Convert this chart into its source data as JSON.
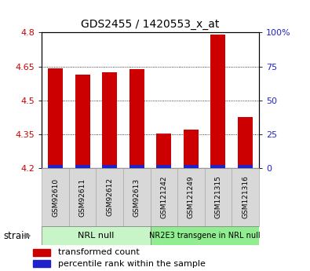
{
  "title": "GDS2455 / 1420553_x_at",
  "samples": [
    "GSM92610",
    "GSM92611",
    "GSM92612",
    "GSM92613",
    "GSM121242",
    "GSM121249",
    "GSM121315",
    "GSM121316"
  ],
  "transformed_counts": [
    4.64,
    4.615,
    4.625,
    4.638,
    4.353,
    4.37,
    4.79,
    4.425
  ],
  "ymin": 4.2,
  "ymax": 4.8,
  "yticks": [
    4.2,
    4.35,
    4.5,
    4.65,
    4.8
  ],
  "right_yticks": [
    0,
    25,
    50,
    75,
    100
  ],
  "right_yticklabels": [
    "0",
    "25",
    "50",
    "75",
    "100%"
  ],
  "groups": [
    {
      "label": "NRL null",
      "start": 0,
      "end": 3,
      "color": "#c8f5c8"
    },
    {
      "label": "NR2E3 transgene in NRL null",
      "start": 4,
      "end": 7,
      "color": "#90ee90"
    }
  ],
  "bar_color_red": "#cc0000",
  "bar_color_blue": "#2222cc",
  "bar_width": 0.55,
  "blue_bar_height": 0.012,
  "background_color": "#ffffff",
  "tick_label_bg": "#d8d8d8",
  "tick_label_border": "#aaaaaa",
  "strain_label": "strain",
  "legend_items": [
    {
      "label": "transformed count",
      "color": "#cc0000"
    },
    {
      "label": "percentile rank within the sample",
      "color": "#2222cc"
    }
  ],
  "ylabel_color": "#cc0000",
  "right_ylabel_color": "#2222cc",
  "title_fontsize": 10
}
